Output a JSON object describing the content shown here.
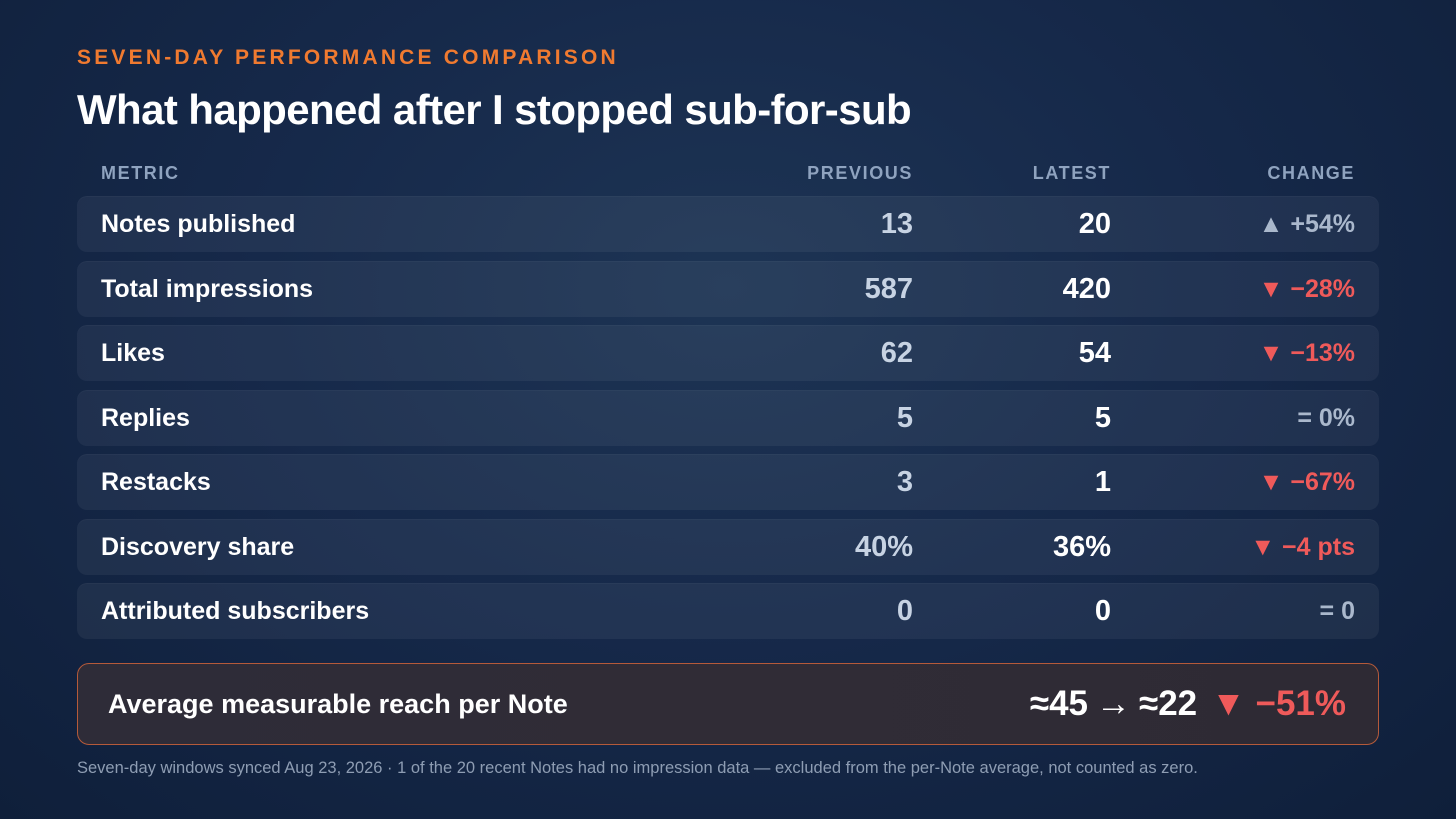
{
  "header": {
    "eyebrow": "SEVEN-DAY PERFORMANCE COMPARISON",
    "title": "What happened after I stopped sub-for-sub"
  },
  "table": {
    "columns": {
      "metric": "METRIC",
      "previous": "PREVIOUS",
      "latest": "LATEST",
      "change": "CHANGE"
    },
    "rows": [
      {
        "metric": "Notes published",
        "previous": "13",
        "latest": "20",
        "change": "▲ +54%",
        "direction": "up"
      },
      {
        "metric": "Total impressions",
        "previous": "587",
        "latest": "420",
        "change": "▼ −28%",
        "direction": "down"
      },
      {
        "metric": "Likes",
        "previous": "62",
        "latest": "54",
        "change": "▼ −13%",
        "direction": "down"
      },
      {
        "metric": "Replies",
        "previous": "5",
        "latest": "5",
        "change": "= 0%",
        "direction": "flat"
      },
      {
        "metric": "Restacks",
        "previous": "3",
        "latest": "1",
        "change": "▼ −67%",
        "direction": "down"
      },
      {
        "metric": "Discovery share",
        "previous": "40%",
        "latest": "36%",
        "change": "▼ −4 pts",
        "direction": "down"
      },
      {
        "metric": "Attributed subscribers",
        "previous": "0",
        "latest": "0",
        "change": "= 0",
        "direction": "flat"
      }
    ]
  },
  "summary": {
    "label": "Average measurable reach per Note",
    "from": "≈45",
    "arrow": "→",
    "to": "≈22",
    "change": "▼ −51%"
  },
  "footnote": "Seven-day windows synced Aug 23, 2026 · 1 of the 20 recent Notes had no impression data — excluded from the per-Note average, not counted as zero.",
  "colors": {
    "accent": "#f07a30",
    "negative": "#ef5a5a",
    "neutral": "#aab8cc",
    "background": "#16294a"
  }
}
